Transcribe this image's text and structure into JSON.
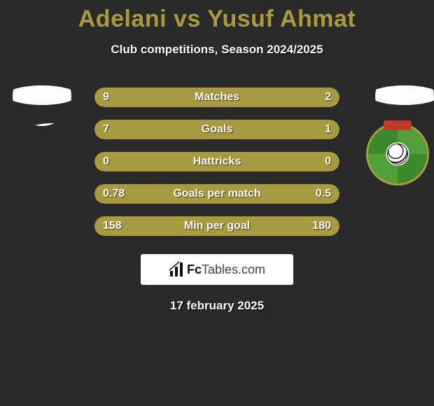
{
  "accent_color": "#a79a3f",
  "background_color": "#2a2a2a",
  "title": {
    "player1": "Adelani",
    "vs": "vs",
    "player2": "Yusuf Ahmat"
  },
  "subtitle": "Club competitions, Season 2024/2025",
  "stats": {
    "bar_bg": "#222222",
    "fill_color": "#a79a3f",
    "text_color": "#ffffff",
    "rows": [
      {
        "label": "Matches",
        "left": "9",
        "right": "2",
        "left_pct": 77,
        "right_pct": 23
      },
      {
        "label": "Goals",
        "left": "7",
        "right": "1",
        "left_pct": 85,
        "right_pct": 15
      },
      {
        "label": "Hattricks",
        "left": "0",
        "right": "0",
        "left_pct": 0,
        "right_pct": 100
      },
      {
        "label": "Goals per match",
        "left": "0.78",
        "right": "0.5",
        "left_pct": 0,
        "right_pct": 100
      },
      {
        "label": "Min per goal",
        "left": "158",
        "right": "180",
        "left_pct": 0,
        "right_pct": 100
      }
    ]
  },
  "brand": {
    "name_bold": "Fc",
    "name_rest": "Tables",
    "suffix": ".com"
  },
  "date": "17 february 2025",
  "avatars": {
    "left": {
      "type": "placeholder-silhouette"
    },
    "right": {
      "type": "placeholder-silhouette"
    }
  },
  "badge": {
    "border_color": "#a79a3f",
    "field_colors": [
      "#52a03a",
      "#3d8a2c"
    ],
    "crest_top_color": "#c0392b"
  }
}
